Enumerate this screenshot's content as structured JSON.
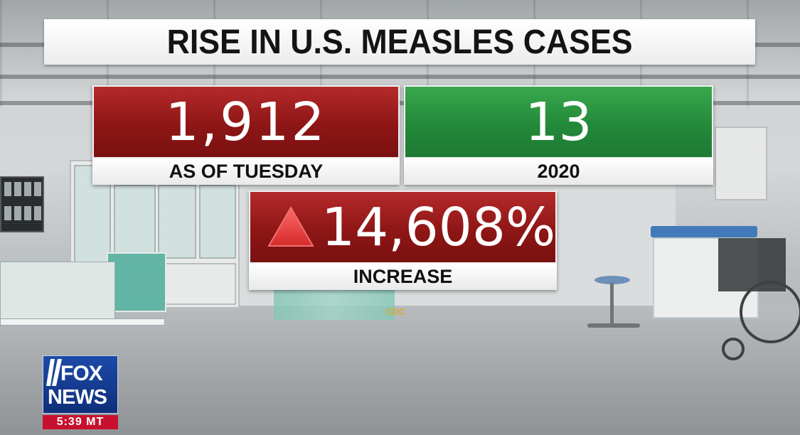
{
  "headline": "RISE IN U.S. MEASLES CASES",
  "stats": {
    "current": {
      "value": "1,912",
      "label": "AS OF TUESDAY",
      "color": "#a01d1d"
    },
    "previous": {
      "value": "13",
      "label": "2020",
      "color": "#2a963f"
    },
    "change": {
      "value": "14,608%",
      "label": "INCREASE",
      "icon": "up-triangle-icon",
      "color": "#a01d1d"
    }
  },
  "source": "CDC",
  "network": {
    "logo_line1": "FOX",
    "logo_line2": "NEWS",
    "time": "5:39 MT",
    "logo_color": "#1c4aa8",
    "time_bg": "#c8102e"
  }
}
